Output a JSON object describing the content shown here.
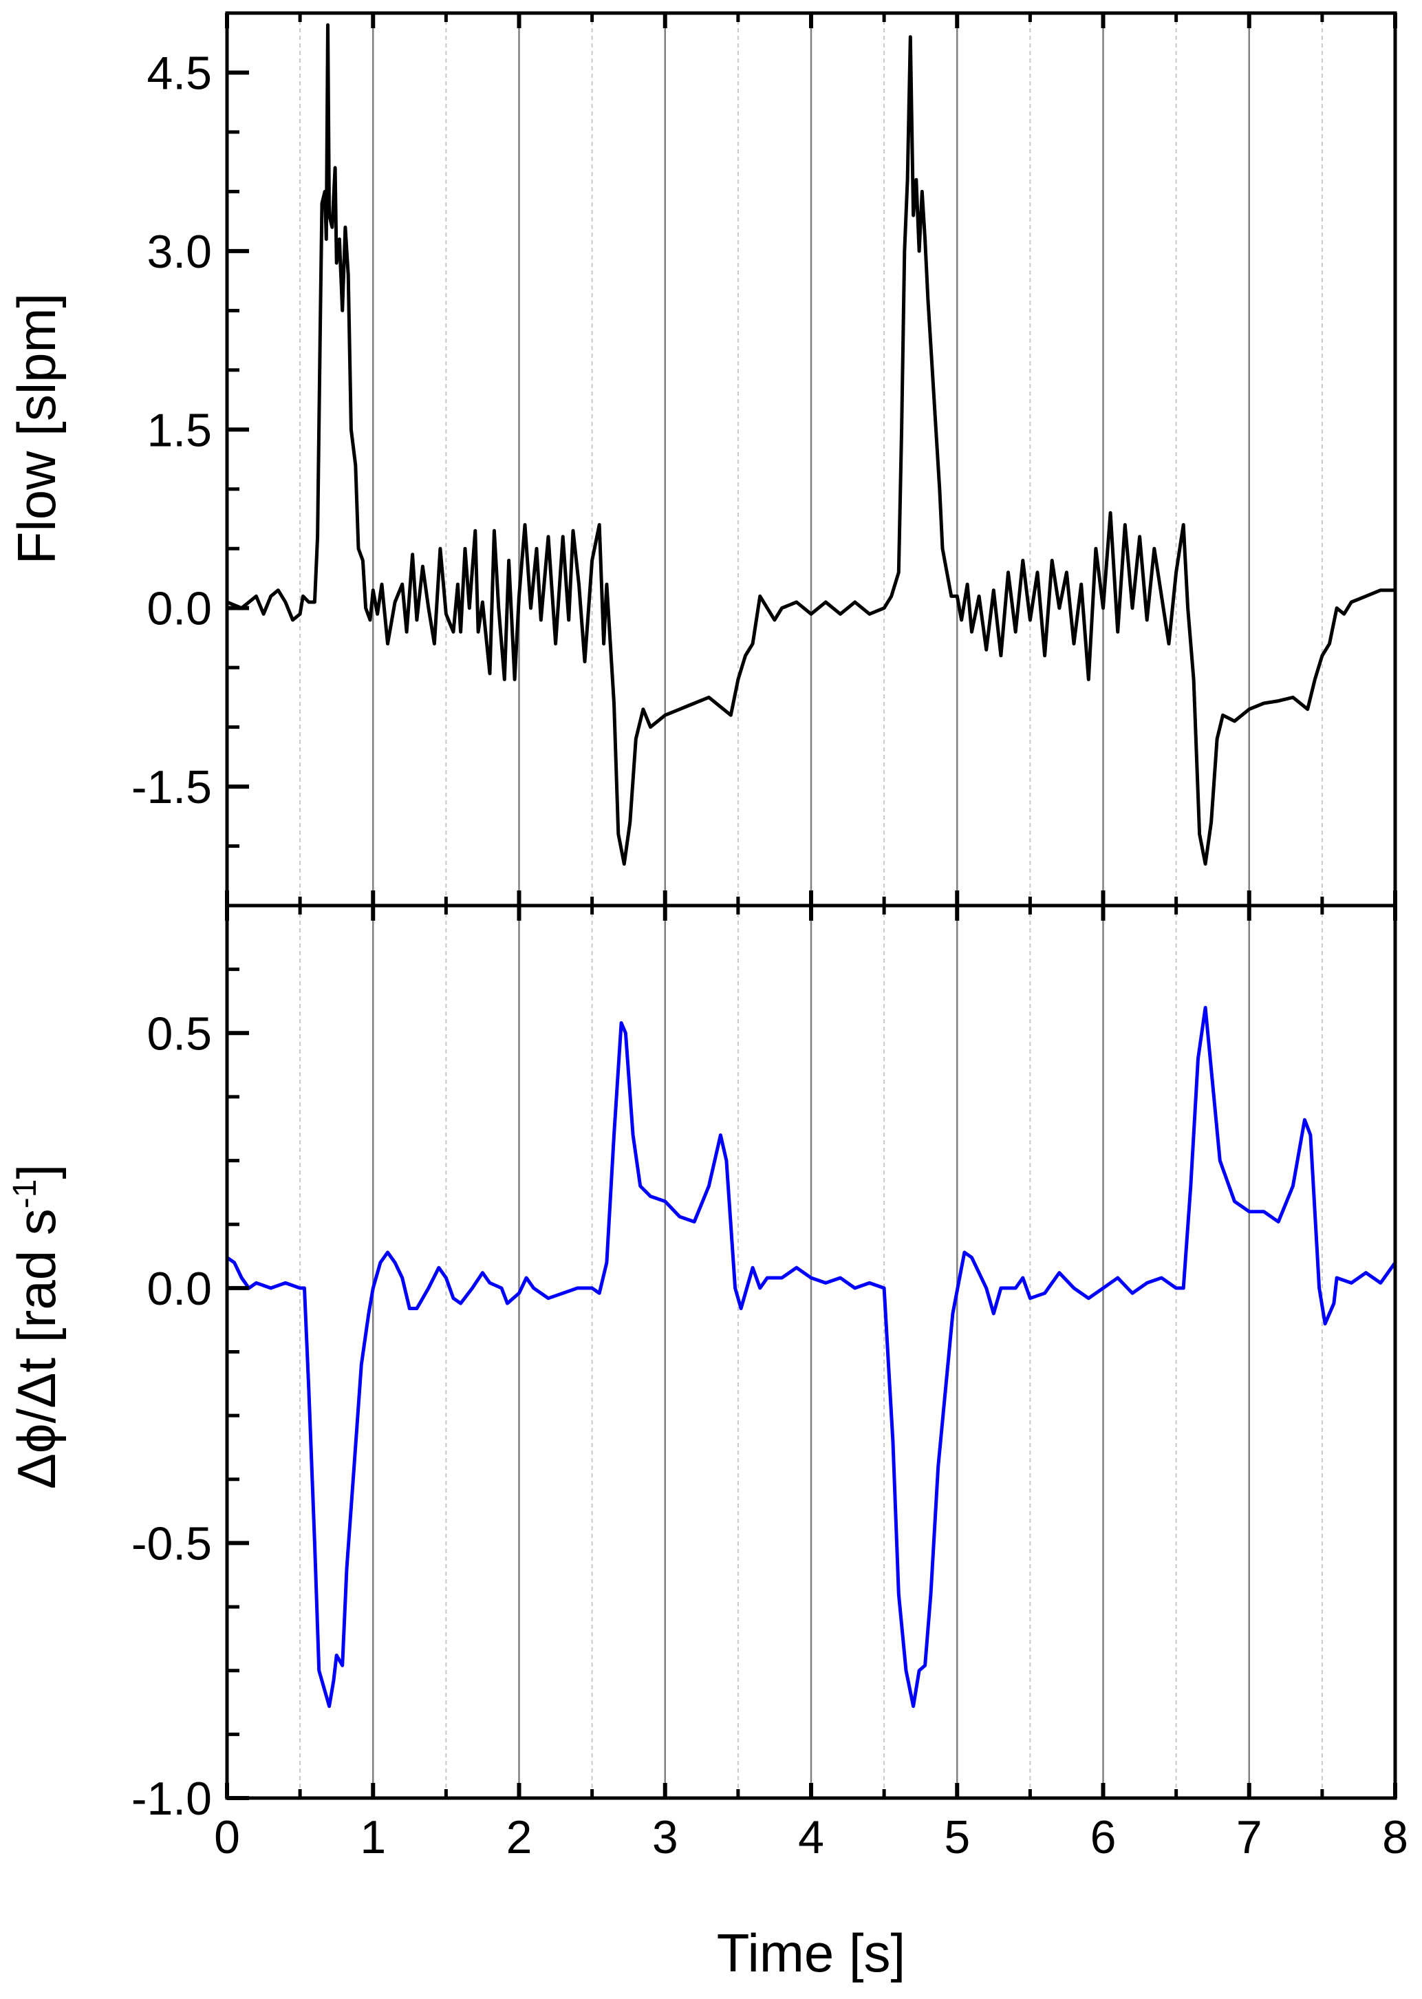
{
  "chart_data": [
    {
      "type": "line",
      "xlabel": "",
      "ylabel": "Flow [slpm]",
      "xlim": [
        0,
        8
      ],
      "ylim": [
        -2.5,
        5
      ],
      "yticks": [
        "4.5",
        "3.0",
        "1.5",
        "0.0",
        "-1.5"
      ],
      "ytick_values": [
        4.5,
        3.0,
        1.5,
        0.0,
        -1.5
      ],
      "grid": "vertical lines at each 0.5 s (solid at integers, dashed at half-seconds)",
      "color": "#000000",
      "points": [
        [
          0,
          0.05
        ],
        [
          0.1,
          0.0
        ],
        [
          0.2,
          0.1
        ],
        [
          0.25,
          -0.05
        ],
        [
          0.3,
          0.1
        ],
        [
          0.35,
          0.15
        ],
        [
          0.4,
          0.05
        ],
        [
          0.45,
          -0.1
        ],
        [
          0.5,
          -0.05
        ],
        [
          0.52,
          0.1
        ],
        [
          0.56,
          0.05
        ],
        [
          0.6,
          0.05
        ],
        [
          0.62,
          0.6
        ],
        [
          0.64,
          2.5
        ],
        [
          0.65,
          3.4
        ],
        [
          0.67,
          3.5
        ],
        [
          0.68,
          3.1
        ],
        [
          0.69,
          4.9
        ],
        [
          0.7,
          3.3
        ],
        [
          0.72,
          3.2
        ],
        [
          0.74,
          3.7
        ],
        [
          0.75,
          2.9
        ],
        [
          0.77,
          3.1
        ],
        [
          0.79,
          2.5
        ],
        [
          0.81,
          3.2
        ],
        [
          0.83,
          2.8
        ],
        [
          0.85,
          1.5
        ],
        [
          0.88,
          1.2
        ],
        [
          0.9,
          0.5
        ],
        [
          0.93,
          0.4
        ],
        [
          0.95,
          0.0
        ],
        [
          0.98,
          -0.1
        ],
        [
          1.0,
          0.15
        ],
        [
          1.03,
          -0.05
        ],
        [
          1.06,
          0.2
        ],
        [
          1.1,
          -0.3
        ],
        [
          1.15,
          0.05
        ],
        [
          1.2,
          0.2
        ],
        [
          1.23,
          -0.2
        ],
        [
          1.27,
          0.45
        ],
        [
          1.3,
          -0.1
        ],
        [
          1.34,
          0.35
        ],
        [
          1.38,
          0.0
        ],
        [
          1.42,
          -0.3
        ],
        [
          1.46,
          0.5
        ],
        [
          1.5,
          -0.05
        ],
        [
          1.55,
          -0.2
        ],
        [
          1.58,
          0.2
        ],
        [
          1.6,
          -0.2
        ],
        [
          1.63,
          0.5
        ],
        [
          1.66,
          0.0
        ],
        [
          1.7,
          0.65
        ],
        [
          1.72,
          -0.2
        ],
        [
          1.75,
          0.05
        ],
        [
          1.8,
          -0.55
        ],
        [
          1.83,
          0.65
        ],
        [
          1.86,
          0.0
        ],
        [
          1.9,
          -0.6
        ],
        [
          1.93,
          0.4
        ],
        [
          1.97,
          -0.6
        ],
        [
          2.0,
          0.1
        ],
        [
          2.04,
          0.7
        ],
        [
          2.08,
          0.0
        ],
        [
          2.12,
          0.5
        ],
        [
          2.15,
          -0.1
        ],
        [
          2.2,
          0.6
        ],
        [
          2.25,
          -0.3
        ],
        [
          2.3,
          0.6
        ],
        [
          2.34,
          -0.1
        ],
        [
          2.37,
          0.65
        ],
        [
          2.41,
          0.2
        ],
        [
          2.45,
          -0.45
        ],
        [
          2.5,
          0.4
        ],
        [
          2.55,
          0.7
        ],
        [
          2.58,
          -0.3
        ],
        [
          2.6,
          0.2
        ],
        [
          2.65,
          -0.8
        ],
        [
          2.68,
          -1.9
        ],
        [
          2.72,
          -2.15
        ],
        [
          2.76,
          -1.8
        ],
        [
          2.8,
          -1.1
        ],
        [
          2.85,
          -0.85
        ],
        [
          2.9,
          -1.0
        ],
        [
          2.95,
          -0.95
        ],
        [
          3.0,
          -0.9
        ],
        [
          3.1,
          -0.85
        ],
        [
          3.2,
          -0.8
        ],
        [
          3.3,
          -0.75
        ],
        [
          3.4,
          -0.85
        ],
        [
          3.45,
          -0.9
        ],
        [
          3.5,
          -0.6
        ],
        [
          3.55,
          -0.4
        ],
        [
          3.6,
          -0.3
        ],
        [
          3.65,
          0.1
        ],
        [
          3.7,
          0.0
        ],
        [
          3.75,
          -0.1
        ],
        [
          3.8,
          0.0
        ],
        [
          3.9,
          0.05
        ],
        [
          4.0,
          -0.05
        ],
        [
          4.1,
          0.05
        ],
        [
          4.2,
          -0.05
        ],
        [
          4.3,
          0.05
        ],
        [
          4.4,
          -0.05
        ],
        [
          4.5,
          0.0
        ],
        [
          4.55,
          0.1
        ],
        [
          4.6,
          0.3
        ],
        [
          4.62,
          1.5
        ],
        [
          4.64,
          3.0
        ],
        [
          4.66,
          3.6
        ],
        [
          4.68,
          4.8
        ],
        [
          4.7,
          3.3
        ],
        [
          4.72,
          3.6
        ],
        [
          4.74,
          3.0
        ],
        [
          4.76,
          3.5
        ],
        [
          4.78,
          3.1
        ],
        [
          4.8,
          2.6
        ],
        [
          4.83,
          2.0
        ],
        [
          4.85,
          1.6
        ],
        [
          4.88,
          1.0
        ],
        [
          4.9,
          0.5
        ],
        [
          4.93,
          0.3
        ],
        [
          4.96,
          0.1
        ],
        [
          5.0,
          0.1
        ],
        [
          5.03,
          -0.1
        ],
        [
          5.07,
          0.2
        ],
        [
          5.1,
          -0.2
        ],
        [
          5.15,
          0.1
        ],
        [
          5.2,
          -0.35
        ],
        [
          5.25,
          0.15
        ],
        [
          5.3,
          -0.4
        ],
        [
          5.35,
          0.3
        ],
        [
          5.4,
          -0.2
        ],
        [
          5.45,
          0.4
        ],
        [
          5.5,
          -0.1
        ],
        [
          5.55,
          0.3
        ],
        [
          5.6,
          -0.4
        ],
        [
          5.65,
          0.4
        ],
        [
          5.7,
          0.0
        ],
        [
          5.75,
          0.3
        ],
        [
          5.8,
          -0.3
        ],
        [
          5.85,
          0.2
        ],
        [
          5.9,
          -0.6
        ],
        [
          5.95,
          0.5
        ],
        [
          6.0,
          0.0
        ],
        [
          6.05,
          0.8
        ],
        [
          6.1,
          -0.2
        ],
        [
          6.15,
          0.7
        ],
        [
          6.2,
          0.0
        ],
        [
          6.25,
          0.6
        ],
        [
          6.3,
          -0.1
        ],
        [
          6.35,
          0.5
        ],
        [
          6.4,
          0.1
        ],
        [
          6.45,
          -0.3
        ],
        [
          6.5,
          0.3
        ],
        [
          6.55,
          0.7
        ],
        [
          6.58,
          0.0
        ],
        [
          6.62,
          -0.6
        ],
        [
          6.66,
          -1.9
        ],
        [
          6.7,
          -2.15
        ],
        [
          6.74,
          -1.8
        ],
        [
          6.78,
          -1.1
        ],
        [
          6.82,
          -0.9
        ],
        [
          6.9,
          -0.95
        ],
        [
          7.0,
          -0.85
        ],
        [
          7.1,
          -0.8
        ],
        [
          7.2,
          -0.78
        ],
        [
          7.3,
          -0.75
        ],
        [
          7.4,
          -0.85
        ],
        [
          7.45,
          -0.6
        ],
        [
          7.5,
          -0.4
        ],
        [
          7.55,
          -0.3
        ],
        [
          7.6,
          0.0
        ],
        [
          7.65,
          -0.05
        ],
        [
          7.7,
          0.05
        ],
        [
          7.8,
          0.1
        ],
        [
          7.9,
          0.15
        ],
        [
          8.0,
          0.15
        ]
      ]
    },
    {
      "type": "line",
      "xlabel": "Time [s]",
      "ylabel": "Δϕ/Δt [rad s⁻¹]",
      "ylabel_main": "Δϕ/Δt [rad s",
      "ylabel_sup": "-1",
      "ylabel_end": "]",
      "xlim": [
        0,
        8
      ],
      "ylim": [
        -1.0,
        0.75
      ],
      "xticks": [
        "0",
        "1",
        "2",
        "3",
        "4",
        "5",
        "6",
        "7",
        "8"
      ],
      "yticks": [
        "0.5",
        "0.0",
        "-0.5",
        "-1.0"
      ],
      "ytick_values": [
        0.5,
        0.0,
        -0.5,
        -1.0
      ],
      "grid": "vertical lines at each 0.5 s (solid at integers, dashed at half-seconds)",
      "color": "#0000ff",
      "points": [
        [
          0,
          0.06
        ],
        [
          0.05,
          0.05
        ],
        [
          0.1,
          0.02
        ],
        [
          0.15,
          0.0
        ],
        [
          0.2,
          0.01
        ],
        [
          0.3,
          0.0
        ],
        [
          0.4,
          0.01
        ],
        [
          0.5,
          0.0
        ],
        [
          0.53,
          0.0
        ],
        [
          0.56,
          -0.2
        ],
        [
          0.6,
          -0.5
        ],
        [
          0.63,
          -0.75
        ],
        [
          0.66,
          -0.78
        ],
        [
          0.7,
          -0.82
        ],
        [
          0.73,
          -0.77
        ],
        [
          0.75,
          -0.72
        ],
        [
          0.79,
          -0.74
        ],
        [
          0.82,
          -0.55
        ],
        [
          0.87,
          -0.35
        ],
        [
          0.92,
          -0.15
        ],
        [
          0.97,
          -0.05
        ],
        [
          1.0,
          0.0
        ],
        [
          1.05,
          0.05
        ],
        [
          1.1,
          0.07
        ],
        [
          1.15,
          0.05
        ],
        [
          1.2,
          0.02
        ],
        [
          1.25,
          -0.04
        ],
        [
          1.3,
          -0.04
        ],
        [
          1.38,
          0.0
        ],
        [
          1.45,
          0.04
        ],
        [
          1.5,
          0.02
        ],
        [
          1.55,
          -0.02
        ],
        [
          1.6,
          -0.03
        ],
        [
          1.68,
          0.0
        ],
        [
          1.75,
          0.03
        ],
        [
          1.8,
          0.01
        ],
        [
          1.88,
          0.0
        ],
        [
          1.92,
          -0.03
        ],
        [
          2.0,
          -0.01
        ],
        [
          2.05,
          0.02
        ],
        [
          2.1,
          0.0
        ],
        [
          2.2,
          -0.02
        ],
        [
          2.3,
          -0.01
        ],
        [
          2.4,
          0.0
        ],
        [
          2.5,
          0.0
        ],
        [
          2.55,
          -0.01
        ],
        [
          2.6,
          0.05
        ],
        [
          2.65,
          0.3
        ],
        [
          2.7,
          0.52
        ],
        [
          2.73,
          0.5
        ],
        [
          2.78,
          0.3
        ],
        [
          2.83,
          0.2
        ],
        [
          2.9,
          0.18
        ],
        [
          3.0,
          0.17
        ],
        [
          3.1,
          0.14
        ],
        [
          3.2,
          0.13
        ],
        [
          3.3,
          0.2
        ],
        [
          3.38,
          0.3
        ],
        [
          3.42,
          0.25
        ],
        [
          3.48,
          0.0
        ],
        [
          3.52,
          -0.04
        ],
        [
          3.6,
          0.04
        ],
        [
          3.65,
          0.0
        ],
        [
          3.7,
          0.02
        ],
        [
          3.8,
          0.02
        ],
        [
          3.9,
          0.04
        ],
        [
          4.0,
          0.02
        ],
        [
          4.1,
          0.01
        ],
        [
          4.2,
          0.02
        ],
        [
          4.3,
          0.0
        ],
        [
          4.4,
          0.01
        ],
        [
          4.5,
          0.0
        ],
        [
          4.56,
          -0.3
        ],
        [
          4.6,
          -0.6
        ],
        [
          4.65,
          -0.75
        ],
        [
          4.7,
          -0.82
        ],
        [
          4.74,
          -0.75
        ],
        [
          4.78,
          -0.74
        ],
        [
          4.82,
          -0.6
        ],
        [
          4.87,
          -0.35
        ],
        [
          4.92,
          -0.2
        ],
        [
          4.97,
          -0.05
        ],
        [
          5.05,
          0.07
        ],
        [
          5.1,
          0.06
        ],
        [
          5.2,
          0.0
        ],
        [
          5.25,
          -0.05
        ],
        [
          5.3,
          0.0
        ],
        [
          5.4,
          0.0
        ],
        [
          5.45,
          0.02
        ],
        [
          5.5,
          -0.02
        ],
        [
          5.6,
          -0.01
        ],
        [
          5.7,
          0.03
        ],
        [
          5.8,
          0.0
        ],
        [
          5.9,
          -0.02
        ],
        [
          6.0,
          0.0
        ],
        [
          6.1,
          0.02
        ],
        [
          6.2,
          -0.01
        ],
        [
          6.3,
          0.01
        ],
        [
          6.4,
          0.02
        ],
        [
          6.5,
          0.0
        ],
        [
          6.55,
          0.0
        ],
        [
          6.6,
          0.2
        ],
        [
          6.65,
          0.45
        ],
        [
          6.7,
          0.55
        ],
        [
          6.75,
          0.4
        ],
        [
          6.8,
          0.25
        ],
        [
          6.9,
          0.17
        ],
        [
          7.0,
          0.15
        ],
        [
          7.1,
          0.15
        ],
        [
          7.2,
          0.13
        ],
        [
          7.3,
          0.2
        ],
        [
          7.38,
          0.33
        ],
        [
          7.42,
          0.3
        ],
        [
          7.48,
          0.0
        ],
        [
          7.52,
          -0.07
        ],
        [
          7.58,
          -0.03
        ],
        [
          7.6,
          0.02
        ],
        [
          7.7,
          0.01
        ],
        [
          7.8,
          0.03
        ],
        [
          7.9,
          0.01
        ],
        [
          8.0,
          0.05
        ]
      ]
    }
  ]
}
